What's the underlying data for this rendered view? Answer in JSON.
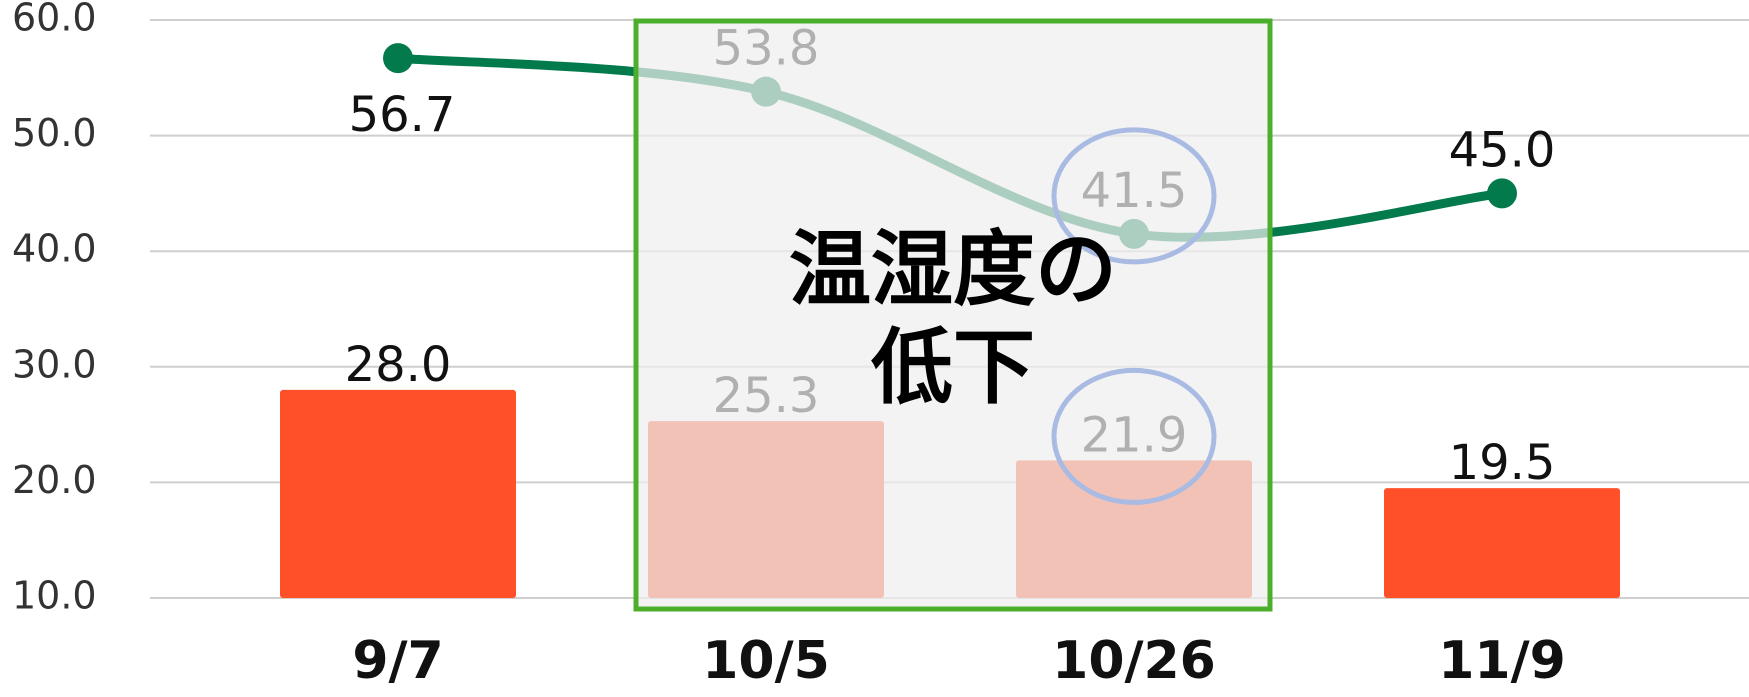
{
  "chart_data": {
    "type": "bar",
    "categories": [
      "9/7",
      "10/5",
      "10/26",
      "11/9"
    ],
    "series": [
      {
        "type": "bar",
        "color": "#ff5029",
        "values": [
          28.0,
          25.3,
          21.9,
          19.5
        ],
        "value_labels": [
          "28.0",
          "25.3",
          "21.9",
          "19.5"
        ]
      },
      {
        "type": "line",
        "color": "#037a4b",
        "values": [
          56.7,
          53.8,
          41.5,
          45.0
        ],
        "value_labels": [
          "56.7",
          "53.8",
          "41.5",
          "45.0"
        ]
      }
    ],
    "ylim": [
      10,
      60
    ],
    "yticks": [
      {
        "value": 10,
        "label": "10.0"
      },
      {
        "value": 20,
        "label": "20.0"
      },
      {
        "value": 30,
        "label": "30.0"
      },
      {
        "value": 40,
        "label": "40.0"
      },
      {
        "value": 50,
        "label": "50.0"
      },
      {
        "value": 60,
        "label": "60.0"
      }
    ],
    "grid": true,
    "annotation": [
      "温湿度の",
      "低下"
    ]
  }
}
